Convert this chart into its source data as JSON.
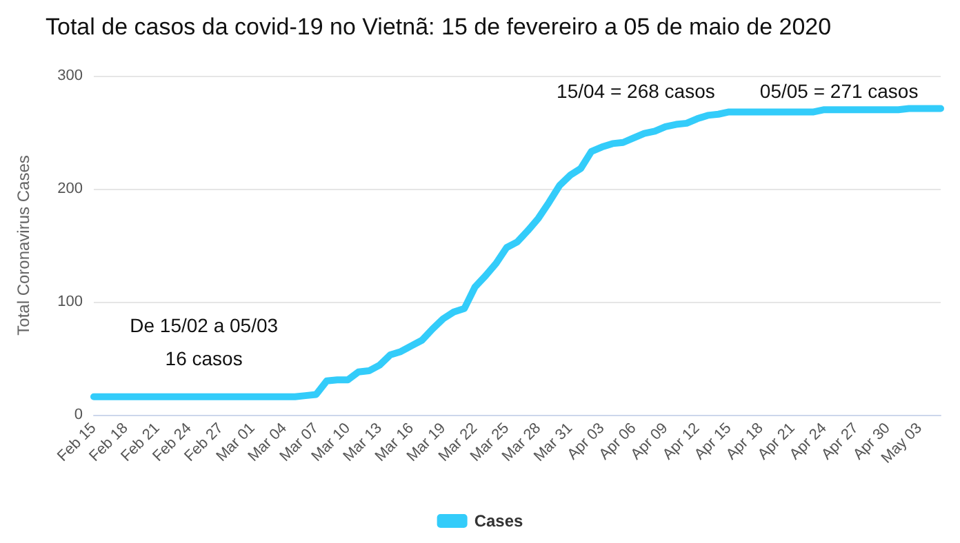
{
  "chart_data": {
    "type": "line",
    "title": "Total de casos da covid-19 no Vietnã: 15 de fevereiro a 05 de maio de 2020",
    "ylabel": "Total Coronavirus Cases",
    "categories": [
      "Feb 15",
      null,
      null,
      "Feb 18",
      null,
      null,
      "Feb 21",
      null,
      null,
      "Feb 24",
      null,
      null,
      "Feb 27",
      null,
      null,
      "Mar 01",
      null,
      null,
      "Mar 04",
      null,
      null,
      "Mar 07",
      null,
      null,
      "Mar 10",
      null,
      null,
      "Mar 13",
      null,
      null,
      "Mar 16",
      null,
      null,
      "Mar 19",
      null,
      null,
      "Mar 22",
      null,
      null,
      "Mar 25",
      null,
      null,
      "Mar 28",
      null,
      null,
      "Mar 31",
      null,
      null,
      "Apr 03",
      null,
      null,
      "Apr 06",
      null,
      null,
      "Apr 09",
      null,
      null,
      "Apr 12",
      null,
      null,
      "Apr 15",
      null,
      null,
      "Apr 18",
      null,
      null,
      "Apr 21",
      null,
      null,
      "Apr 24",
      null,
      null,
      "Apr 27",
      null,
      null,
      "Apr 30",
      null,
      null,
      "May 03",
      null,
      null
    ],
    "series": [
      {
        "name": "Cases",
        "color": "#33ccfa",
        "values": [
          16,
          16,
          16,
          16,
          16,
          16,
          16,
          16,
          16,
          16,
          16,
          16,
          16,
          16,
          16,
          16,
          16,
          16,
          16,
          16,
          17,
          18,
          30,
          31,
          31,
          38,
          39,
          44,
          53,
          56,
          61,
          66,
          76,
          85,
          91,
          94,
          113,
          123,
          134,
          148,
          153,
          163,
          174,
          188,
          203,
          212,
          218,
          233,
          237,
          240,
          241,
          245,
          249,
          251,
          255,
          257,
          258,
          262,
          265,
          266,
          268,
          268,
          268,
          268,
          268,
          268,
          268,
          268,
          268,
          270,
          270,
          270,
          270,
          270,
          270,
          270,
          270,
          271,
          271,
          271,
          271
        ]
      }
    ],
    "ylim": [
      0,
      300
    ],
    "yticks": [
      0,
      100,
      200,
      300
    ],
    "grid": "y",
    "legend": "bottom",
    "marker": "none",
    "line_style": "solid",
    "annotations": [
      "De 15/02 a 05/03\n16 casos",
      "15/04 = 268 casos",
      "05/05 = 271 casos"
    ]
  }
}
